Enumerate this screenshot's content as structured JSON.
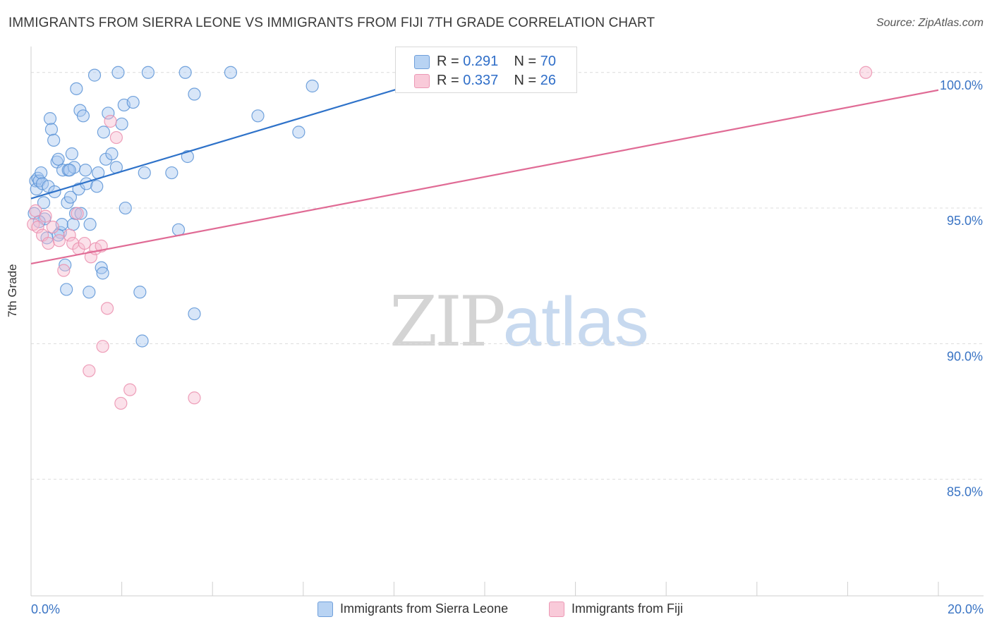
{
  "header": {
    "title": "IMMIGRANTS FROM SIERRA LEONE VS IMMIGRANTS FROM FIJI 7TH GRADE CORRELATION CHART",
    "source": "Source: ZipAtlas.com"
  },
  "legend": {
    "series1": {
      "r_label": "R = ",
      "r_value": "0.291",
      "n_label": "N = ",
      "n_value": "70"
    },
    "series2": {
      "r_label": "R = ",
      "r_value": "0.337",
      "n_label": "N = ",
      "n_value": "26"
    }
  },
  "watermark": {
    "zip": "ZIP",
    "atlas": "atlas"
  },
  "colors": {
    "blue_fill": "#a9c8f0",
    "blue_stroke": "#5b93d6",
    "blue_line": "#2e72c9",
    "pink_fill": "#f7bdd0",
    "pink_stroke": "#eb8fae",
    "pink_line": "#e06b95",
    "tick_label": "#3a74c4",
    "grid": "#dcdcdc"
  },
  "chart_data": {
    "type": "scatter",
    "title": "IMMIGRANTS FROM SIERRA LEONE VS IMMIGRANTS FROM FIJI 7TH GRADE CORRELATION CHART",
    "xlabel": "",
    "ylabel": "7th Grade",
    "xlim": [
      0,
      20
    ],
    "ylim": [
      80.7,
      100.8
    ],
    "x_ticks": [
      0,
      2,
      4,
      6,
      8,
      10,
      12,
      14,
      16,
      18,
      20
    ],
    "x_tick_labels": [
      {
        "value": 0,
        "label": "0.0%"
      },
      {
        "value": 20,
        "label": "20.0%"
      }
    ],
    "y_ticks": [
      {
        "value": 85,
        "label": "85.0%"
      },
      {
        "value": 90,
        "label": "90.0%"
      },
      {
        "value": 95,
        "label": "95.0%"
      },
      {
        "value": 100,
        "label": "100.0%"
      }
    ],
    "grid": true,
    "series": [
      {
        "name": "Immigrants from Sierra Leone",
        "color": "blue",
        "r": 0.291,
        "n": 70,
        "trend": {
          "x": [
            0,
            8.2
          ],
          "y": [
            95.35,
            99.45
          ]
        },
        "points": [
          [
            0.07,
            94.8
          ],
          [
            0.1,
            96.0
          ],
          [
            0.12,
            95.7
          ],
          [
            0.15,
            96.1
          ],
          [
            0.18,
            96.0
          ],
          [
            0.22,
            96.3
          ],
          [
            0.25,
            95.9
          ],
          [
            0.28,
            95.2
          ],
          [
            0.3,
            94.6
          ],
          [
            0.35,
            93.9
          ],
          [
            0.38,
            95.8
          ],
          [
            0.42,
            98.3
          ],
          [
            0.45,
            97.9
          ],
          [
            0.5,
            97.5
          ],
          [
            0.52,
            95.6
          ],
          [
            0.57,
            96.7
          ],
          [
            0.6,
            96.8
          ],
          [
            0.65,
            94.1
          ],
          [
            0.68,
            94.4
          ],
          [
            0.7,
            96.4
          ],
          [
            0.75,
            92.9
          ],
          [
            0.78,
            92.0
          ],
          [
            0.8,
            95.2
          ],
          [
            0.82,
            96.4
          ],
          [
            0.87,
            95.4
          ],
          [
            0.9,
            97.0
          ],
          [
            0.93,
            94.4
          ],
          [
            0.95,
            96.5
          ],
          [
            0.98,
            94.8
          ],
          [
            1.0,
            99.4
          ],
          [
            1.05,
            95.7
          ],
          [
            1.08,
            98.6
          ],
          [
            1.1,
            94.8
          ],
          [
            1.15,
            98.4
          ],
          [
            1.2,
            96.4
          ],
          [
            1.22,
            95.9
          ],
          [
            1.28,
            91.9
          ],
          [
            1.3,
            94.4
          ],
          [
            1.4,
            99.9
          ],
          [
            1.45,
            95.8
          ],
          [
            1.48,
            96.3
          ],
          [
            1.55,
            92.8
          ],
          [
            1.58,
            92.6
          ],
          [
            1.6,
            97.8
          ],
          [
            1.65,
            96.8
          ],
          [
            1.7,
            98.5
          ],
          [
            1.78,
            97.0
          ],
          [
            1.88,
            96.5
          ],
          [
            1.92,
            100.0
          ],
          [
            2.0,
            98.1
          ],
          [
            2.05,
            98.8
          ],
          [
            2.08,
            95.0
          ],
          [
            2.25,
            98.9
          ],
          [
            2.4,
            91.9
          ],
          [
            2.45,
            90.1
          ],
          [
            2.5,
            96.3
          ],
          [
            2.58,
            100.0
          ],
          [
            3.1,
            96.3
          ],
          [
            3.25,
            94.2
          ],
          [
            3.4,
            100.0
          ],
          [
            3.45,
            96.9
          ],
          [
            3.6,
            99.2
          ],
          [
            3.6,
            91.1
          ],
          [
            4.4,
            100.0
          ],
          [
            5.0,
            98.4
          ],
          [
            5.9,
            97.8
          ],
          [
            6.2,
            99.5
          ],
          [
            0.18,
            94.5
          ],
          [
            0.6,
            94.0
          ],
          [
            0.85,
            96.4
          ]
        ]
      },
      {
        "name": "Immigrants from Fiji",
        "color": "pink",
        "r": 0.337,
        "n": 26,
        "trend": {
          "x": [
            0,
            20
          ],
          "y": [
            92.95,
            99.35
          ]
        },
        "points": [
          [
            0.05,
            94.4
          ],
          [
            0.1,
            94.9
          ],
          [
            0.15,
            94.3
          ],
          [
            0.25,
            94.0
          ],
          [
            0.32,
            94.7
          ],
          [
            0.38,
            93.7
          ],
          [
            0.48,
            94.3
          ],
          [
            0.62,
            93.8
          ],
          [
            0.72,
            92.7
          ],
          [
            0.85,
            94.0
          ],
          [
            0.92,
            93.7
          ],
          [
            1.02,
            94.8
          ],
          [
            1.05,
            93.5
          ],
          [
            1.18,
            93.7
          ],
          [
            1.28,
            89.0
          ],
          [
            1.32,
            93.2
          ],
          [
            1.42,
            93.5
          ],
          [
            1.55,
            93.6
          ],
          [
            1.58,
            89.9
          ],
          [
            1.68,
            91.3
          ],
          [
            1.75,
            98.2
          ],
          [
            1.88,
            97.6
          ],
          [
            1.98,
            87.8
          ],
          [
            2.18,
            88.3
          ],
          [
            3.6,
            88.0
          ],
          [
            18.4,
            100.0
          ]
        ]
      }
    ]
  }
}
